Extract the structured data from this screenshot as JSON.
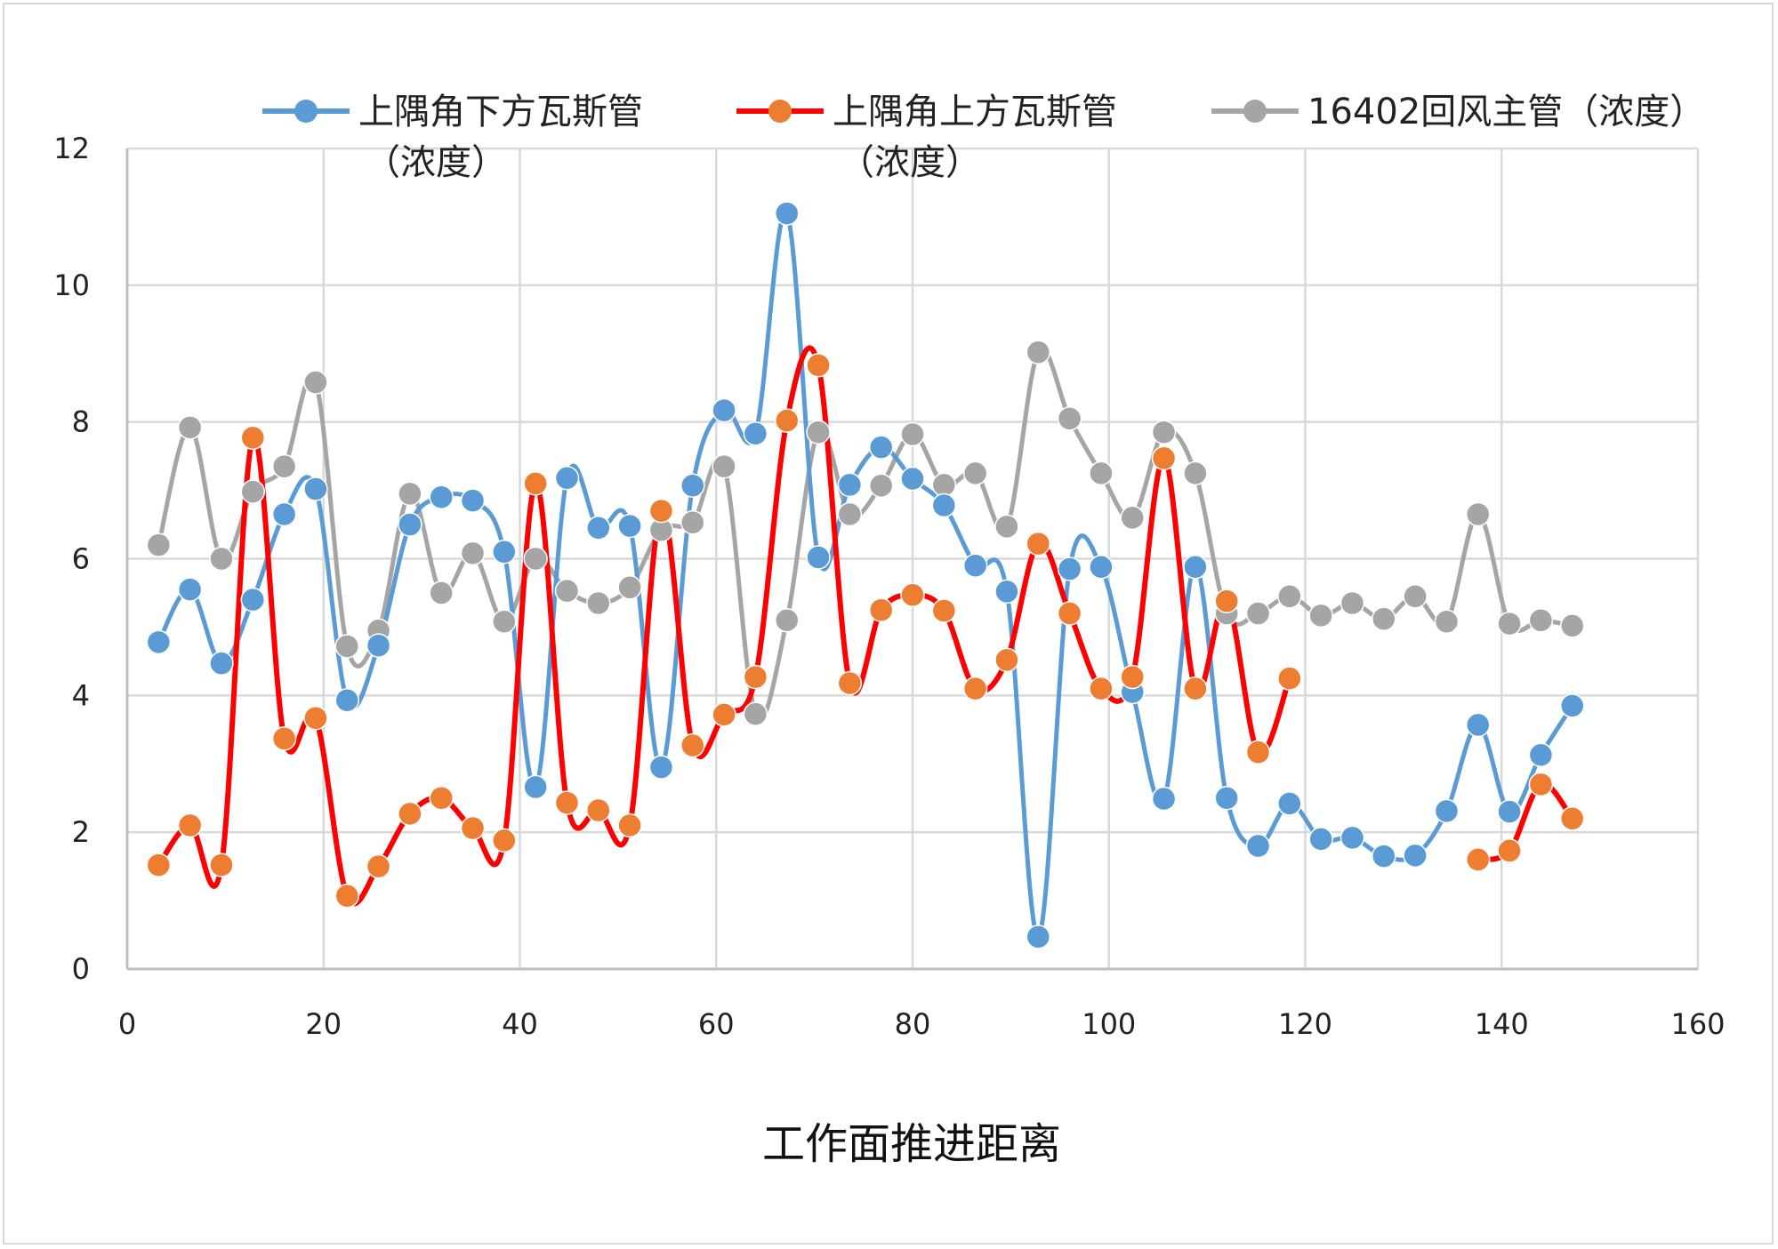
{
  "chart_data": {
    "type": "line",
    "xlabel": "工作面推进距离",
    "ylabel": "",
    "xlim": [
      0,
      160
    ],
    "ylim": [
      0,
      12
    ],
    "xticks": [
      0,
      20,
      40,
      60,
      80,
      100,
      120,
      140,
      160
    ],
    "yticks": [
      0,
      2,
      4,
      6,
      8,
      10,
      12
    ],
    "grid": true,
    "legend_position": "top",
    "series": [
      {
        "name": "上隅角下方瓦斯管（浓度）",
        "legend_lines": [
          "上隅角下方瓦斯管",
          "（浓度）"
        ],
        "color": "#5B9BD5",
        "marker_color": "#5B9BD5",
        "points": [
          [
            3.2,
            4.78
          ],
          [
            6.4,
            5.55
          ],
          [
            9.6,
            4.47
          ],
          [
            12.8,
            5.4
          ],
          [
            16.0,
            6.65
          ],
          [
            19.2,
            7.02
          ],
          [
            22.4,
            3.93
          ],
          [
            25.6,
            4.73
          ],
          [
            28.8,
            6.5
          ],
          [
            32.0,
            6.9
          ],
          [
            35.2,
            6.85
          ],
          [
            38.4,
            6.1
          ],
          [
            41.6,
            2.66
          ],
          [
            44.8,
            7.18
          ],
          [
            48.0,
            6.45
          ],
          [
            51.2,
            6.48
          ],
          [
            54.4,
            2.95
          ],
          [
            57.6,
            7.07
          ],
          [
            60.8,
            8.17
          ],
          [
            64.0,
            7.83
          ],
          [
            67.2,
            11.05
          ],
          [
            70.4,
            6.02
          ],
          [
            73.6,
            7.08
          ],
          [
            76.8,
            7.63
          ],
          [
            80.0,
            7.17
          ],
          [
            83.2,
            6.78
          ],
          [
            86.4,
            5.9
          ],
          [
            89.6,
            5.52
          ],
          [
            92.8,
            0.47
          ],
          [
            96.0,
            5.85
          ],
          [
            99.2,
            5.88
          ],
          [
            102.4,
            4.05
          ],
          [
            105.6,
            2.49
          ],
          [
            108.8,
            5.88
          ],
          [
            112.0,
            2.5
          ],
          [
            115.2,
            1.8
          ],
          [
            118.4,
            2.42
          ],
          [
            121.6,
            1.9
          ],
          [
            124.8,
            1.92
          ],
          [
            128.0,
            1.65
          ],
          [
            131.2,
            1.66
          ],
          [
            134.4,
            2.31
          ],
          [
            137.6,
            3.57
          ],
          [
            140.8,
            2.3
          ],
          [
            144.0,
            3.13
          ],
          [
            147.2,
            3.85
          ]
        ]
      },
      {
        "name": "上隅角上方瓦斯管（浓度）",
        "legend_lines": [
          "上隅角上方瓦斯管",
          "（浓度）"
        ],
        "color": "#FF0000",
        "marker_color": "#ED7D31",
        "points": [
          [
            3.2,
            1.52
          ],
          [
            6.4,
            2.1
          ],
          [
            9.6,
            1.52
          ],
          [
            12.8,
            7.77
          ],
          [
            16.0,
            3.37
          ],
          [
            19.2,
            3.67
          ],
          [
            22.4,
            1.07
          ],
          [
            25.6,
            1.5
          ],
          [
            28.8,
            2.27
          ],
          [
            32.0,
            2.5
          ],
          [
            35.2,
            2.06
          ],
          [
            38.4,
            1.88
          ],
          [
            41.6,
            7.1
          ],
          [
            44.8,
            2.43
          ],
          [
            48.0,
            2.32
          ],
          [
            51.2,
            2.1
          ],
          [
            54.4,
            6.7
          ],
          [
            57.6,
            3.27
          ],
          [
            60.8,
            3.72
          ],
          [
            64.0,
            4.27
          ],
          [
            67.2,
            8.02
          ],
          [
            70.4,
            8.83
          ],
          [
            73.6,
            4.18
          ],
          [
            76.8,
            5.25
          ],
          [
            80.0,
            5.47
          ],
          [
            83.2,
            5.24
          ],
          [
            86.4,
            4.1
          ],
          [
            89.6,
            4.52
          ],
          [
            92.8,
            6.22
          ],
          [
            96.0,
            5.2
          ],
          [
            99.2,
            4.1
          ],
          [
            102.4,
            4.27
          ],
          [
            105.6,
            7.47
          ],
          [
            108.8,
            4.1
          ],
          [
            112.0,
            5.38
          ],
          [
            115.2,
            3.17
          ],
          [
            118.4,
            4.25
          ],
          null,
          [
            137.6,
            1.6
          ],
          [
            140.8,
            1.73
          ],
          [
            144.0,
            2.7
          ],
          [
            147.2,
            2.2
          ]
        ]
      },
      {
        "name": "16402回风主管（浓度）",
        "legend_lines": [
          "16402回风主管（浓度）"
        ],
        "color": "#A5A5A5",
        "marker_color": "#A5A5A5",
        "points": [
          [
            3.2,
            6.2
          ],
          [
            6.4,
            7.92
          ],
          [
            9.6,
            6.0
          ],
          [
            12.8,
            6.98
          ],
          [
            16.0,
            7.35
          ],
          [
            19.2,
            8.58
          ],
          [
            22.4,
            4.72
          ],
          [
            25.6,
            4.95
          ],
          [
            28.8,
            6.95
          ],
          [
            32.0,
            5.5
          ],
          [
            35.2,
            6.08
          ],
          [
            38.4,
            5.08
          ],
          [
            41.6,
            6.0
          ],
          [
            44.8,
            5.53
          ],
          [
            48.0,
            5.35
          ],
          [
            51.2,
            5.58
          ],
          [
            54.4,
            6.42
          ],
          [
            57.6,
            6.53
          ],
          [
            60.8,
            7.35
          ],
          [
            64.0,
            3.73
          ],
          [
            67.2,
            5.1
          ],
          [
            70.4,
            7.85
          ],
          [
            73.6,
            6.65
          ],
          [
            76.8,
            7.07
          ],
          [
            80.0,
            7.82
          ],
          [
            83.2,
            7.08
          ],
          [
            86.4,
            7.25
          ],
          [
            89.6,
            6.47
          ],
          [
            92.8,
            9.02
          ],
          [
            96.0,
            8.05
          ],
          [
            99.2,
            7.25
          ],
          [
            102.4,
            6.6
          ],
          [
            105.6,
            7.85
          ],
          [
            108.8,
            7.25
          ],
          [
            112.0,
            5.2
          ],
          [
            115.2,
            5.2
          ],
          [
            118.4,
            5.45
          ],
          [
            121.6,
            5.17
          ],
          [
            124.8,
            5.35
          ],
          [
            128.0,
            5.12
          ],
          [
            131.2,
            5.45
          ],
          [
            134.4,
            5.08
          ],
          [
            137.6,
            6.65
          ],
          [
            140.8,
            5.05
          ],
          [
            144.0,
            5.1
          ],
          [
            147.2,
            5.02
          ]
        ]
      }
    ]
  }
}
